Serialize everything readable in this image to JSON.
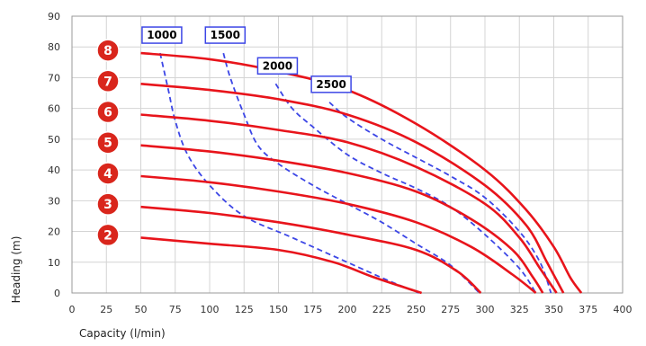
{
  "chart_data": {
    "type": "line",
    "xlabel": "Capacity (l/min)",
    "ylabel": "Heading (m)",
    "xlim": [
      0,
      400
    ],
    "ylim": [
      0,
      90
    ],
    "xticks": [
      0,
      25,
      50,
      75,
      100,
      125,
      150,
      175,
      200,
      225,
      250,
      275,
      300,
      325,
      350,
      375,
      400
    ],
    "yticks": [
      0,
      10,
      20,
      30,
      40,
      50,
      60,
      70,
      80,
      90
    ],
    "grid": true,
    "colors": {
      "stage_curve": "#e8141b",
      "rpm_curve": "#3c46e6",
      "badge": "#d9261c"
    },
    "stages": [
      {
        "label": "8",
        "points": [
          [
            50,
            78
          ],
          [
            100,
            76
          ],
          [
            150,
            72
          ],
          [
            200,
            66
          ],
          [
            250,
            55
          ],
          [
            300,
            40
          ],
          [
            330,
            27
          ],
          [
            350,
            15
          ],
          [
            362,
            5
          ],
          [
            370,
            0
          ]
        ]
      },
      {
        "label": "7",
        "points": [
          [
            50,
            68
          ],
          [
            100,
            66
          ],
          [
            150,
            63
          ],
          [
            200,
            58
          ],
          [
            250,
            49
          ],
          [
            300,
            35
          ],
          [
            330,
            22
          ],
          [
            345,
            10
          ],
          [
            357,
            0
          ]
        ]
      },
      {
        "label": "6",
        "points": [
          [
            50,
            58
          ],
          [
            100,
            56
          ],
          [
            150,
            53
          ],
          [
            200,
            49
          ],
          [
            250,
            41
          ],
          [
            300,
            29
          ],
          [
            325,
            18
          ],
          [
            340,
            8
          ],
          [
            352,
            0
          ]
        ]
      },
      {
        "label": "5",
        "points": [
          [
            50,
            48
          ],
          [
            100,
            46
          ],
          [
            150,
            43
          ],
          [
            200,
            39
          ],
          [
            250,
            33
          ],
          [
            290,
            24
          ],
          [
            320,
            14
          ],
          [
            335,
            5
          ],
          [
            342,
            0
          ]
        ]
      },
      {
        "label": "4",
        "points": [
          [
            50,
            38
          ],
          [
            100,
            36
          ],
          [
            150,
            33
          ],
          [
            200,
            29
          ],
          [
            250,
            23
          ],
          [
            290,
            15
          ],
          [
            320,
            6
          ],
          [
            337,
            0
          ]
        ]
      },
      {
        "label": "3",
        "points": [
          [
            50,
            28
          ],
          [
            100,
            26
          ],
          [
            150,
            23
          ],
          [
            200,
            19
          ],
          [
            250,
            14
          ],
          [
            280,
            7
          ],
          [
            297,
            0
          ]
        ]
      },
      {
        "label": "2",
        "points": [
          [
            50,
            18
          ],
          [
            100,
            16
          ],
          [
            150,
            14
          ],
          [
            190,
            10
          ],
          [
            220,
            5
          ],
          [
            254,
            0
          ]
        ]
      }
    ],
    "rpm_lines": [
      {
        "label": "1000",
        "points": [
          [
            64,
            78
          ],
          [
            70,
            66
          ],
          [
            75,
            56
          ],
          [
            84,
            45
          ],
          [
            100,
            35
          ],
          [
            125,
            25
          ],
          [
            160,
            18
          ],
          [
            200,
            10
          ],
          [
            230,
            4
          ],
          [
            252,
            0
          ]
        ]
      },
      {
        "label": "1500",
        "points": [
          [
            110,
            78
          ],
          [
            115,
            70
          ],
          [
            125,
            58
          ],
          [
            135,
            48
          ],
          [
            150,
            42
          ],
          [
            175,
            35
          ],
          [
            200,
            29
          ],
          [
            225,
            23
          ],
          [
            250,
            16
          ],
          [
            275,
            9
          ],
          [
            296,
            0
          ]
        ]
      },
      {
        "label": "2000",
        "points": [
          [
            148,
            68
          ],
          [
            160,
            60
          ],
          [
            175,
            54
          ],
          [
            200,
            45
          ],
          [
            225,
            39
          ],
          [
            250,
            34
          ],
          [
            275,
            28
          ],
          [
            300,
            19
          ],
          [
            325,
            8
          ],
          [
            337,
            0
          ]
        ]
      },
      {
        "label": "2500",
        "points": [
          [
            187,
            62
          ],
          [
            200,
            57
          ],
          [
            225,
            50
          ],
          [
            250,
            44
          ],
          [
            275,
            38
          ],
          [
            300,
            31
          ],
          [
            325,
            20
          ],
          [
            340,
            10
          ],
          [
            348,
            0
          ]
        ]
      }
    ]
  }
}
